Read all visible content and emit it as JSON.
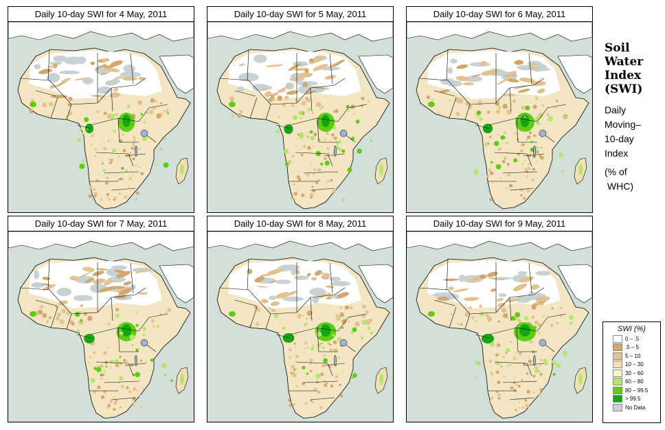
{
  "panels": [
    {
      "title": "Daily 10-day SWI for  4 May, 2011",
      "variant": 0
    },
    {
      "title": "Daily 10-day SWI for  5 May, 2011",
      "variant": 1
    },
    {
      "title": "Daily 10-day SWI for  6 May, 2011",
      "variant": 2
    },
    {
      "title": "Daily 10-day SWI for  7 May, 2011",
      "variant": 3
    },
    {
      "title": "Daily 10-day SWI for  8 May, 2011",
      "variant": 4
    },
    {
      "title": "Daily 10-day SWI for  9 May, 2011",
      "variant": 5
    }
  ],
  "side": {
    "title_lines": [
      "Soil",
      "Water",
      "Index",
      "(SWI)"
    ],
    "sub_lines": [
      "Daily",
      "Moving–",
      "10-day",
      "Index"
    ],
    "unit_lines": [
      "(% of",
      " WHC)"
    ]
  },
  "legend": {
    "title": "SWI (%)",
    "items": [
      {
        "label": "0 – .5",
        "color": "#ffffff"
      },
      {
        "label": ".5 – 5",
        "color": "#d2a86e"
      },
      {
        "label": "5 – 10",
        "color": "#e3c28f"
      },
      {
        "label": "10 – 30",
        "color": "#f2dfb4"
      },
      {
        "label": "30 – 60",
        "color": "#f4f4c8"
      },
      {
        "label": "60 – 80",
        "color": "#b4e66e"
      },
      {
        "label": "80 – 99.5",
        "color": "#5fcc14"
      },
      {
        "label": "> 99.5",
        "color": "#14a514"
      },
      {
        "label": "No Data",
        "color": "#c8d2d2"
      }
    ]
  },
  "colors": {
    "ocean": "#d3e0da",
    "land": "#f4e6c2",
    "sahara": "#ffffff",
    "desert_tan": "#e3c28f",
    "desert_brown": "#d2a86e",
    "nodata": "#c8d2d2",
    "wet_light": "#b4e66e",
    "wet_mid": "#5fcc14",
    "wet_dark": "#14a514"
  }
}
